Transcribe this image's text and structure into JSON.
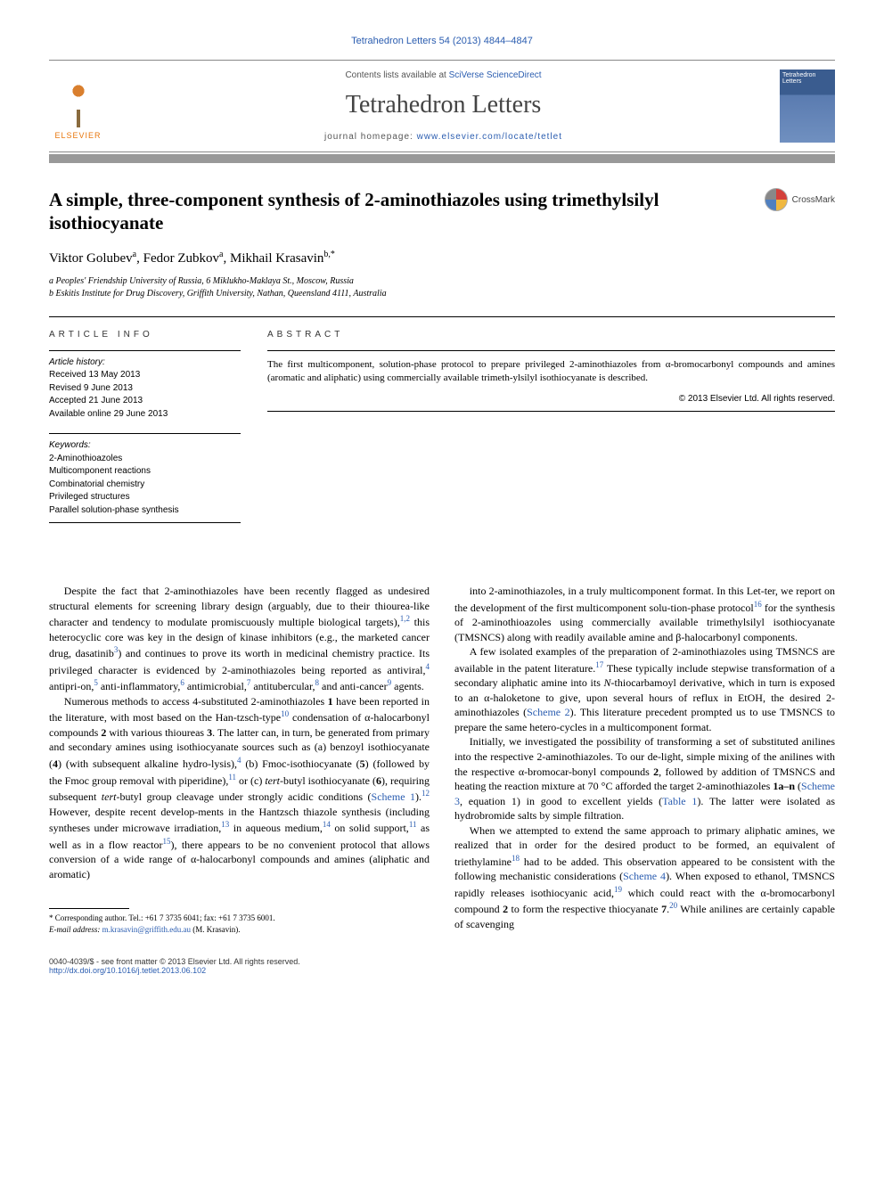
{
  "citation": "Tetrahedron Letters 54 (2013) 4844–4847",
  "header": {
    "contents_prefix": "Contents lists available at ",
    "contents_link": "SciVerse ScienceDirect",
    "journal_name": "Tetrahedron Letters",
    "homepage_prefix": "journal homepage: ",
    "homepage_link": "www.elsevier.com/locate/tetlet",
    "elsevier_label": "ELSEVIER",
    "cover_label": "Tetrahedron Letters"
  },
  "crossmark_label": "CrossMark",
  "title": "A simple, three-component synthesis of 2-aminothiazoles using trimethylsilyl isothiocyanate",
  "authors_html": "Viktor Golubev<sup>a</sup>, Fedor Zubkov<sup>a</sup>, Mikhail Krasavin<sup>b,*</sup>",
  "affiliations": [
    "a Peoples' Friendship University of Russia, 6 Miklukho-Maklaya St., Moscow, Russia",
    "b Eskitis Institute for Drug Discovery, Griffith University, Nathan, Queensland 4111, Australia"
  ],
  "article_info_label": "ARTICLE INFO",
  "abstract_label": "ABSTRACT",
  "history": {
    "hdr": "Article history:",
    "received": "Received 13 May 2013",
    "revised": "Revised 9 June 2013",
    "accepted": "Accepted 21 June 2013",
    "online": "Available online 29 June 2013"
  },
  "keywords": {
    "hdr": "Keywords:",
    "items": [
      "2-Aminothioazoles",
      "Multicomponent reactions",
      "Combinatorial chemistry",
      "Privileged structures",
      "Parallel solution-phase synthesis"
    ]
  },
  "abstract_text": "The first multicomponent, solution-phase protocol to prepare privileged 2-aminothiazoles from α-bromocarbonyl compounds and amines (aromatic and aliphatic) using commercially available trimeth-ylsilyl isothiocyanate is described.",
  "copyright": "© 2013 Elsevier Ltd. All rights reserved.",
  "body": {
    "left": [
      "Despite the fact that 2-aminothiazoles have been recently flagged as undesired structural elements for screening library design (arguably, due to their thiourea-like character and tendency to modulate promiscuously multiple biological targets),<sup>1,2</sup> this heterocyclic core was key in the design of kinase inhibitors (e.g., the marketed cancer drug, dasatinib<sup>3</sup>) and continues to prove its worth in medicinal chemistry practice. Its privileged character is evidenced by 2-aminothiazoles being reported as antiviral,<sup>4</sup> antipri-on,<sup>5</sup> anti-inflammatory,<sup>6</sup> antimicrobial,<sup>7</sup> antitubercular,<sup>8</sup> and anti-cancer<sup>9</sup> agents.",
      "Numerous methods to access 4-substituted 2-aminothiazoles <b>1</b> have been reported in the literature, with most based on the Han-tzsch-type<sup>10</sup> condensation of α-halocarbonyl compounds <b>2</b> with various thioureas <b>3</b>. The latter can, in turn, be generated from primary and secondary amines using isothiocyanate sources such as (a) benzoyl isothiocyanate (<b>4</b>) (with subsequent alkaline hydro-lysis),<sup>4</sup> (b) Fmoc-isothiocyanate (<b>5</b>) (followed by the Fmoc group removal with piperidine),<sup>11</sup> or (c) <i>tert</i>-butyl isothiocyanate (<b>6</b>), requiring subsequent <i>tert</i>-butyl group cleavage under strongly acidic conditions (<a>Scheme 1</a>).<sup>12</sup> However, despite recent develop-ments in the Hantzsch thiazole synthesis (including syntheses under microwave irradiation,<sup>13</sup> in aqueous medium,<sup>14</sup> on solid support,<sup>11</sup> as well as in a flow reactor<sup>15</sup>), there appears to be no convenient protocol that allows conversion of a wide range of α-halocarbonyl compounds and amines (aliphatic and aromatic)"
    ],
    "right": [
      "into 2-aminothiazoles, in a truly multicomponent format. In this Let-ter, we report on the development of the first multicomponent solu-tion-phase protocol<sup>16</sup> for the synthesis of 2-aminothioazoles using commercially available trimethylsilyl isothiocyanate (TMSNCS) along with readily available amine and β-halocarbonyl components.",
      "A few isolated examples of the preparation of 2-aminothiazoles using TMSNCS are available in the patent literature.<sup>17</sup> These typically include stepwise transformation of a secondary aliphatic amine into its <i>N</i>-thiocarbamoyl derivative, which in turn is exposed to an α-haloketone to give, upon several hours of reflux in EtOH, the desired 2-aminothiazoles (<a>Scheme 2</a>). This literature precedent prompted us to use TMSNCS to prepare the same hetero-cycles in a multicomponent format.",
      "Initially, we investigated the possibility of transforming a set of substituted anilines into the respective 2-aminothiazoles. To our de-light, simple mixing of the anilines with the respective α-bromocar-bonyl compounds <b>2</b>, followed by addition of TMSNCS and heating the reaction mixture at 70 °C afforded the target 2-aminothiazoles <b>1a–n</b> (<a>Scheme 3</a>, equation 1) in good to excellent yields (<a>Table 1</a>). The latter were isolated as hydrobromide salts by simple filtration.",
      "When we attempted to extend the same approach to primary aliphatic amines, we realized that in order for the desired product to be formed, an equivalent of triethylamine<sup>18</sup> had to be added. This observation appeared to be consistent with the following mechanistic considerations (<a>Scheme 4</a>). When exposed to ethanol, TMSNCS rapidly releases isothiocyanic acid,<sup>19</sup> which could react with the α-bromocarbonyl compound <b>2</b> to form the respective thiocyanate <b>7</b>.<sup>20</sup> While anilines are certainly capable of scavenging"
    ]
  },
  "footnote": {
    "corr": "* Corresponding author. Tel.: +61 7 3735 6041; fax: +61 7 3735 6001.",
    "email_label": "E-mail address:",
    "email": "m.krasavin@griffith.edu.au",
    "email_who": "(M. Krasavin)."
  },
  "bottom": {
    "left_line1": "0040-4039/$ - see front matter © 2013 Elsevier Ltd. All rights reserved.",
    "left_line2": "http://dx.doi.org/10.1016/j.tetlet.2013.06.102"
  },
  "colors": {
    "link": "#2b5db0",
    "elsevier_orange": "#e8760c",
    "cover_blue": "#3a5c8f",
    "divider_grey": "#999999"
  }
}
